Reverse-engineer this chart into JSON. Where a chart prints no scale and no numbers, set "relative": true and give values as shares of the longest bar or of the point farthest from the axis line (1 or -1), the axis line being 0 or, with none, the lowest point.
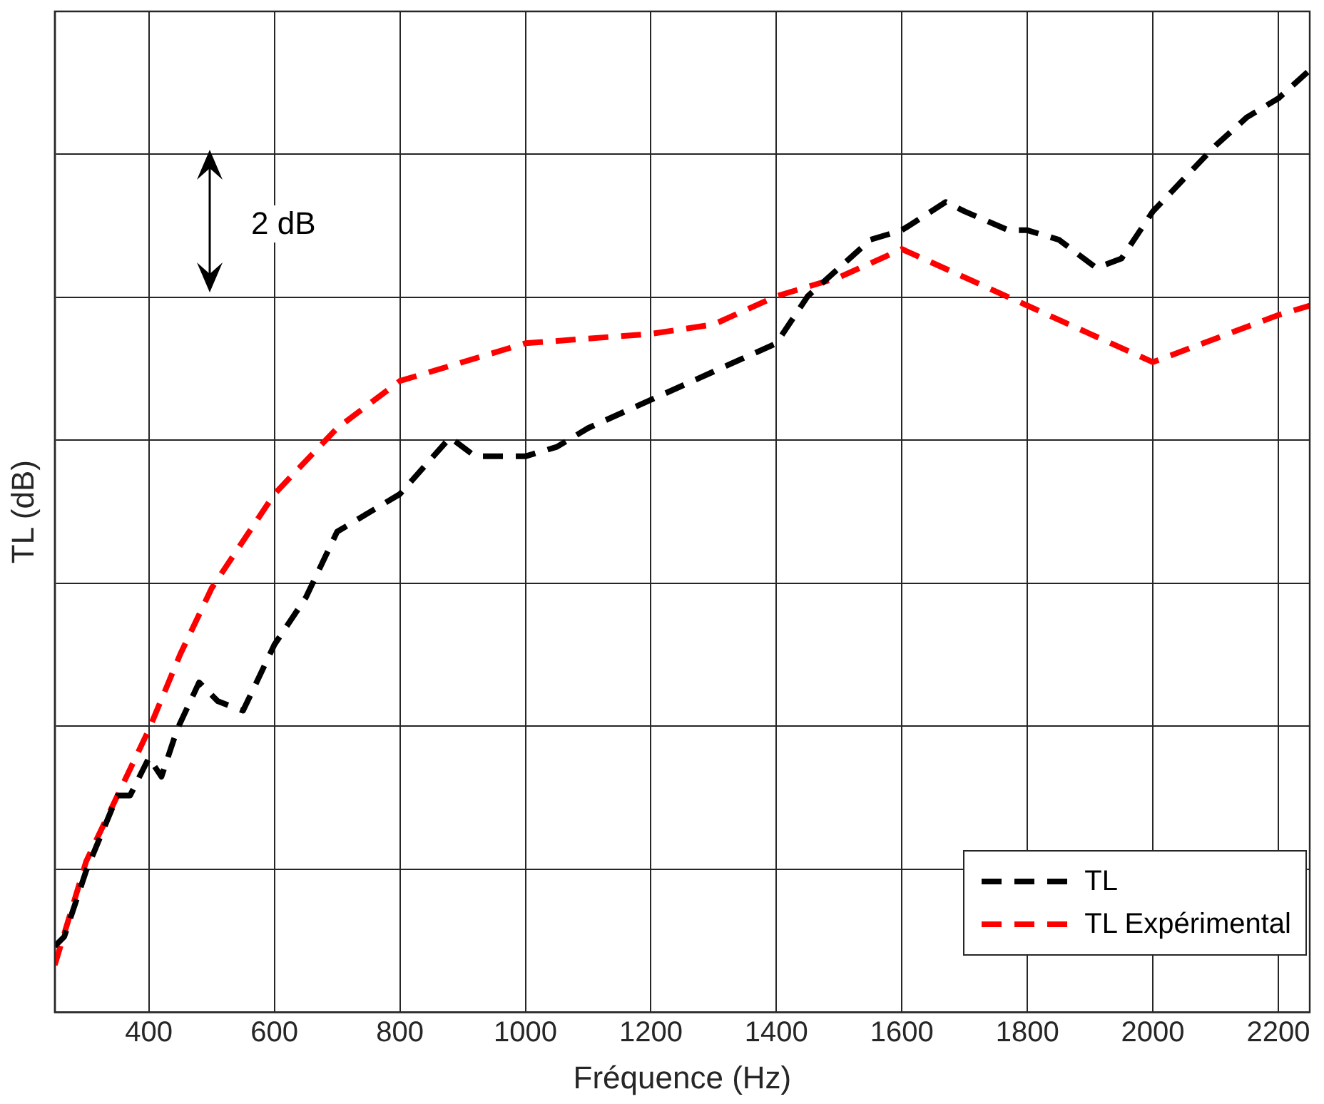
{
  "chart_data": {
    "type": "line",
    "xlabel": "Fréquence (Hz)",
    "ylabel": "TL (dB)",
    "relative": true,
    "xlim": [
      250,
      2250
    ],
    "xticks": [
      400,
      600,
      800,
      1000,
      1200,
      1400,
      1600,
      1800,
      2000,
      2200
    ],
    "grid": true,
    "legend": "bottom right",
    "line_style": "dashed",
    "marker": "none",
    "annotations": [
      "2 dB"
    ],
    "series": [
      {
        "name": "TL",
        "color": "#000000",
        "x": [
          250,
          265,
          300,
          350,
          370,
          400,
          420,
          445,
          480,
          510,
          550,
          600,
          650,
          700,
          750,
          800,
          880,
          920,
          1000,
          1050,
          1100,
          1200,
          1300,
          1400,
          1450,
          1500,
          1550,
          1600,
          1670,
          1700,
          1770,
          1800,
          1850,
          1910,
          1950,
          2000,
          2100,
          2150,
          2200,
          2250
        ],
        "values": [
          0.07,
          0.08,
          0.15,
          0.23,
          0.23,
          0.27,
          0.25,
          0.3,
          0.35,
          0.33,
          0.32,
          0.39,
          0.44,
          0.51,
          0.53,
          0.55,
          0.61,
          0.59,
          0.59,
          0.6,
          0.62,
          0.65,
          0.68,
          0.71,
          0.76,
          0.79,
          0.82,
          0.83,
          0.86,
          0.85,
          0.83,
          0.83,
          0.82,
          0.79,
          0.8,
          0.85,
          0.92,
          0.95,
          0.97,
          1
        ]
      },
      {
        "name": "TL Expérimental",
        "color": "#ff0000",
        "x": [
          250,
          300,
          350,
          400,
          450,
          500,
          600,
          700,
          800,
          900,
          1000,
          1200,
          1300,
          1400,
          1500,
          1600,
          1800,
          2000,
          2200,
          2250
        ],
        "values": [
          0.05,
          0.16,
          0.23,
          0.3,
          0.38,
          0.45,
          0.55,
          0.62,
          0.67,
          0.69,
          0.71,
          0.72,
          0.73,
          0.76,
          0.78,
          0.81,
          0.75,
          0.69,
          0.74,
          0.75
        ]
      }
    ]
  }
}
